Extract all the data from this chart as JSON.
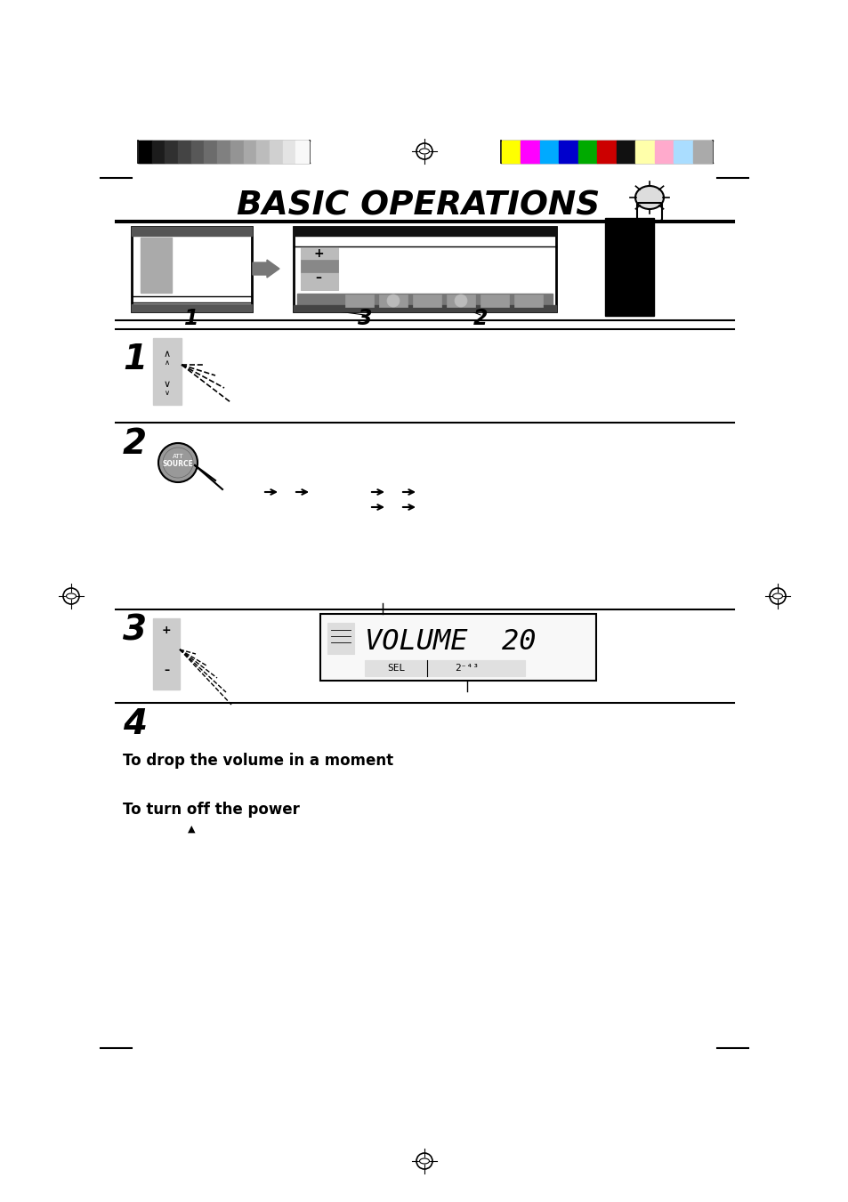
{
  "title": "BASIC OPERATIONS",
  "bg_color": "#ffffff",
  "gray_bars": [
    "#000000",
    "#1c1c1c",
    "#303030",
    "#444444",
    "#585858",
    "#6c6c6c",
    "#808080",
    "#949494",
    "#a8a8a8",
    "#bcbcbc",
    "#d0d0d0",
    "#e4e4e4",
    "#f8f8f8"
  ],
  "color_bars": [
    "#ffff00",
    "#ff00ff",
    "#00aaff",
    "#0000cc",
    "#00aa00",
    "#cc0000",
    "#111111",
    "#ffffaa",
    "#ffaacc",
    "#aaddff",
    "#aaaaaa"
  ],
  "step4_text1": "To drop the volume in a moment",
  "step4_text2": "To turn off the power"
}
